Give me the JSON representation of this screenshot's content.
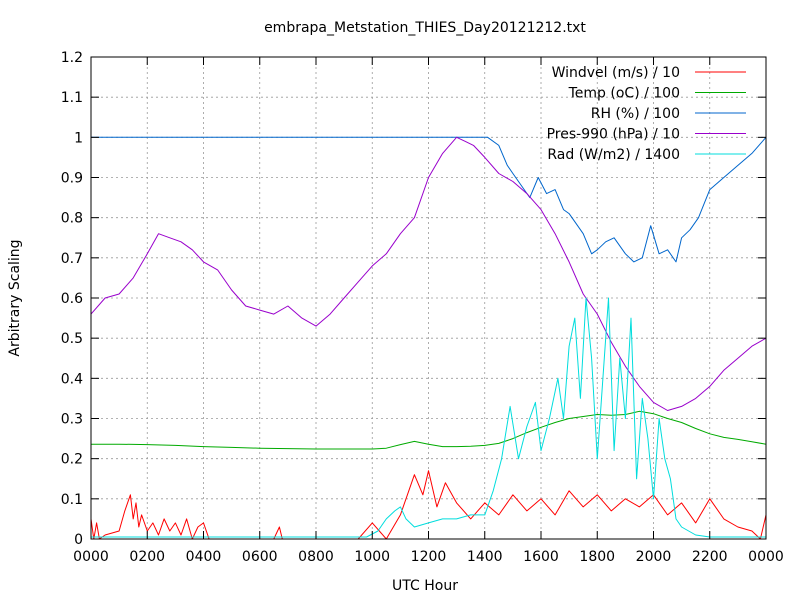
{
  "chart_data": {
    "type": "line",
    "title": "embrapa_Metstation_THIES_Day20121212.txt",
    "xlabel": "UTC Hour",
    "ylabel": "Arbitrary Scaling",
    "xlim": [
      0,
      24
    ],
    "ylim": [
      0,
      1.2
    ],
    "grid": true,
    "legend_position": "top-right",
    "x_ticks": [
      "0000",
      "0200",
      "0400",
      "0600",
      "0800",
      "1000",
      "1200",
      "1400",
      "1600",
      "1800",
      "2000",
      "2200",
      "0000"
    ],
    "y_ticks": [
      "0",
      "0.1",
      "0.2",
      "0.3",
      "0.4",
      "0.5",
      "0.6",
      "0.7",
      "0.8",
      "0.9",
      "1",
      "1.1",
      "1.2"
    ],
    "series": [
      {
        "name": "Windvel (m/s) / 10",
        "color": "#ff0000",
        "x": [
          0,
          0.1,
          0.2,
          0.3,
          0.5,
          1.0,
          1.2,
          1.4,
          1.5,
          1.6,
          1.7,
          1.8,
          2.0,
          2.2,
          2.4,
          2.6,
          2.8,
          3.0,
          3.2,
          3.4,
          3.6,
          3.8,
          4.0,
          4.2,
          6.5,
          6.7,
          6.8,
          9.5,
          10.0,
          10.5,
          11.0,
          11.3,
          11.5,
          11.8,
          12.0,
          12.3,
          12.6,
          13.0,
          13.5,
          14.0,
          14.5,
          15.0,
          15.5,
          16.0,
          16.5,
          17.0,
          17.5,
          18.0,
          18.5,
          19.0,
          19.5,
          20.0,
          20.5,
          21.0,
          21.5,
          22.0,
          22.5,
          23.0,
          23.5,
          23.8,
          24.0
        ],
        "y": [
          0.05,
          0.0,
          0.04,
          0.0,
          0.01,
          0.02,
          0.07,
          0.11,
          0.05,
          0.09,
          0.03,
          0.06,
          0.02,
          0.04,
          0.01,
          0.05,
          0.02,
          0.04,
          0.01,
          0.05,
          0.0,
          0.03,
          0.04,
          0.0,
          0.0,
          0.03,
          0.0,
          0.0,
          0.04,
          0.0,
          0.06,
          0.12,
          0.16,
          0.11,
          0.17,
          0.08,
          0.14,
          0.09,
          0.05,
          0.09,
          0.06,
          0.11,
          0.07,
          0.1,
          0.06,
          0.12,
          0.08,
          0.11,
          0.07,
          0.1,
          0.08,
          0.11,
          0.06,
          0.09,
          0.04,
          0.1,
          0.05,
          0.03,
          0.02,
          0.0,
          0.06
        ]
      },
      {
        "name": "Temp (oC) / 100",
        "color": "#00aa00",
        "x": [
          0,
          1,
          2,
          3,
          4,
          5,
          6,
          7,
          8,
          9,
          10,
          10.5,
          11,
          11.5,
          12,
          12.5,
          13,
          13.5,
          14,
          14.5,
          15,
          15.5,
          16,
          16.5,
          17,
          17.5,
          18,
          18.5,
          19,
          19.5,
          20,
          20.5,
          21,
          21.5,
          22,
          22.5,
          23,
          23.5,
          24
        ],
        "y": [
          0.236,
          0.236,
          0.235,
          0.233,
          0.23,
          0.228,
          0.226,
          0.225,
          0.224,
          0.224,
          0.224,
          0.226,
          0.235,
          0.243,
          0.236,
          0.23,
          0.23,
          0.231,
          0.233,
          0.238,
          0.25,
          0.265,
          0.278,
          0.29,
          0.3,
          0.305,
          0.31,
          0.308,
          0.31,
          0.318,
          0.312,
          0.3,
          0.29,
          0.275,
          0.262,
          0.253,
          0.248,
          0.242,
          0.236
        ]
      },
      {
        "name": "RH (%) / 100",
        "color": "#0066cc",
        "x": [
          0,
          13.5,
          14.1,
          14.5,
          14.8,
          15.0,
          15.3,
          15.6,
          15.9,
          16.2,
          16.5,
          16.8,
          17.0,
          17.2,
          17.5,
          17.8,
          18.0,
          18.3,
          18.6,
          19.0,
          19.3,
          19.6,
          19.9,
          20.2,
          20.5,
          20.8,
          21.0,
          21.3,
          21.6,
          22.0,
          22.5,
          23.0,
          23.5,
          24.0
        ],
        "y": [
          1.0,
          1.0,
          1.0,
          0.98,
          0.93,
          0.91,
          0.88,
          0.85,
          0.9,
          0.86,
          0.87,
          0.82,
          0.81,
          0.79,
          0.76,
          0.71,
          0.72,
          0.74,
          0.75,
          0.71,
          0.69,
          0.7,
          0.78,
          0.71,
          0.72,
          0.69,
          0.75,
          0.77,
          0.8,
          0.87,
          0.9,
          0.93,
          0.96,
          1.0
        ]
      },
      {
        "name": "Pres-990 (hPa) / 10",
        "color": "#9900cc",
        "x": [
          0,
          0.5,
          1.0,
          1.5,
          2.0,
          2.4,
          2.8,
          3.2,
          3.6,
          4.0,
          4.5,
          5.0,
          5.5,
          6.0,
          6.5,
          7.0,
          7.5,
          8.0,
          8.5,
          9.0,
          9.5,
          10.0,
          10.5,
          11.0,
          11.5,
          12.0,
          12.5,
          13.0,
          13.3,
          13.6,
          14.0,
          14.5,
          15.0,
          15.5,
          16.0,
          16.5,
          17.0,
          17.5,
          18.0,
          18.5,
          19.0,
          19.5,
          20.0,
          20.5,
          21.0,
          21.5,
          22.0,
          22.5,
          23.0,
          23.5,
          24.0
        ],
        "y": [
          0.56,
          0.6,
          0.61,
          0.65,
          0.71,
          0.76,
          0.75,
          0.74,
          0.72,
          0.69,
          0.67,
          0.62,
          0.58,
          0.57,
          0.56,
          0.58,
          0.55,
          0.53,
          0.56,
          0.6,
          0.64,
          0.68,
          0.71,
          0.76,
          0.8,
          0.9,
          0.96,
          1.0,
          0.99,
          0.98,
          0.95,
          0.91,
          0.89,
          0.86,
          0.82,
          0.76,
          0.69,
          0.61,
          0.56,
          0.49,
          0.43,
          0.38,
          0.34,
          0.32,
          0.33,
          0.35,
          0.38,
          0.42,
          0.45,
          0.48,
          0.5
        ]
      },
      {
        "name": "Rad (W/m2) / 1400",
        "color": "#00dddd",
        "x": [
          0,
          9.8,
          10.2,
          10.5,
          10.8,
          11.0,
          11.2,
          11.5,
          12.0,
          12.5,
          13.0,
          13.5,
          14.0,
          14.3,
          14.6,
          14.9,
          15.2,
          15.5,
          15.8,
          16.0,
          16.3,
          16.6,
          16.8,
          17.0,
          17.2,
          17.4,
          17.6,
          17.8,
          18.0,
          18.2,
          18.4,
          18.6,
          18.8,
          19.0,
          19.2,
          19.4,
          19.6,
          19.8,
          20.0,
          20.2,
          20.4,
          20.6,
          20.8,
          21.0,
          21.5,
          22.0,
          24.0
        ],
        "y": [
          0.005,
          0.005,
          0.02,
          0.05,
          0.07,
          0.08,
          0.05,
          0.03,
          0.04,
          0.05,
          0.05,
          0.06,
          0.06,
          0.12,
          0.2,
          0.33,
          0.2,
          0.28,
          0.34,
          0.22,
          0.3,
          0.4,
          0.3,
          0.48,
          0.55,
          0.35,
          0.6,
          0.45,
          0.2,
          0.4,
          0.6,
          0.22,
          0.45,
          0.3,
          0.55,
          0.15,
          0.35,
          0.25,
          0.1,
          0.3,
          0.2,
          0.15,
          0.05,
          0.03,
          0.01,
          0.005,
          0.005
        ]
      }
    ]
  }
}
